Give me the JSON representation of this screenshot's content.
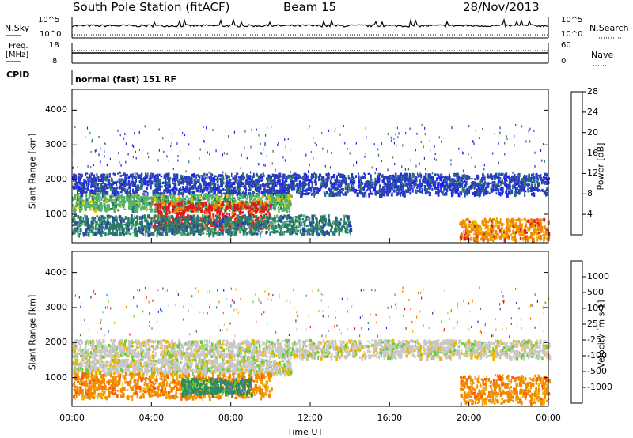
{
  "header": {
    "title": "South Pole Station (fitACF)",
    "beam": "Beam 15",
    "date": "28/Nov/2013"
  },
  "strips": {
    "nsky_label": "N.Sky",
    "nsky_ticks": [
      "10^5",
      "10^0"
    ],
    "nsearch_label": "N.Search",
    "nsearch_ticks": [
      "10^5",
      "10^0"
    ],
    "freq_label_1": "Freq.",
    "freq_label_2": "[MHz]",
    "freq_ticks": [
      "18",
      "8"
    ],
    "nave_label": "Nave",
    "nave_ticks": [
      "60",
      "0"
    ],
    "cpid_label": "CPID",
    "cpid_value": "normal (fast) 151 RF"
  },
  "chart_data": [
    {
      "type": "heatmap",
      "quantity": "Power",
      "ylabel": "Slant Range [km]",
      "yticks": [
        1000,
        2000,
        3000,
        4000
      ],
      "ylim": [
        180,
        4600
      ],
      "xticks": [
        "00:00",
        "04:00",
        "08:00",
        "12:00",
        "16:00",
        "20:00",
        "00:00"
      ],
      "xlim_hours": [
        0,
        24
      ],
      "colorbar": {
        "label": "Power [dB]",
        "ticks": [
          "4",
          "8",
          "12",
          "16",
          "20",
          "24",
          "28"
        ],
        "colors": [
          "#1e1eff",
          "#2a3fb8",
          "#2a7a6a",
          "#52b26a",
          "#e0c800",
          "#f08a00",
          "#e31a1c"
        ]
      },
      "echo_bands": [
        {
          "label": "band-upper",
          "start": "00:00",
          "end": "24:00",
          "range_km": [
            1600,
            2200
          ],
          "power_db": 6
        },
        {
          "label": "band-mid",
          "start": "00:00",
          "end": "11:00",
          "range_km": [
            1150,
            1600
          ],
          "power_db": 14
        },
        {
          "label": "band-low-strong",
          "start": "04:00",
          "end": "10:00",
          "range_km": [
            600,
            1400
          ],
          "power_db": 26
        },
        {
          "label": "band-low",
          "start": "00:00",
          "end": "14:00",
          "range_km": [
            450,
            1000
          ],
          "power_db": 12
        },
        {
          "label": "band-evening",
          "start": "19:30",
          "end": "24:00",
          "range_km": [
            300,
            900
          ],
          "power_db": 22
        }
      ]
    },
    {
      "type": "heatmap",
      "quantity": "Velocity",
      "ylabel": "Slant Range [km]",
      "yticks": [
        1000,
        2000,
        3000,
        4000
      ],
      "ylim": [
        180,
        4600
      ],
      "xticks": [
        "00:00",
        "04:00",
        "08:00",
        "12:00",
        "16:00",
        "20:00",
        "00:00"
      ],
      "xlabel": "Time UT",
      "xlim_hours": [
        0,
        24
      ],
      "colorbar": {
        "label": "Velocity [m s-1]",
        "ticks": [
          "1000",
          "500",
          "100",
          "25",
          "-25",
          "-100",
          "-500",
          "-1000"
        ],
        "colors": [
          "#1e3cc8",
          "#3c78c8",
          "#2e8b57",
          "#66cc33",
          "#c8c8c8",
          "#f0b400",
          "#f08a00",
          "#ff5a00",
          "#e31a1c"
        ]
      },
      "echo_bands": [
        {
          "label": "band-upper",
          "start": "00:00",
          "end": "24:00",
          "range_km": [
            1600,
            2100
          ],
          "velocity": 0
        },
        {
          "label": "band-mid",
          "start": "00:00",
          "end": "11:00",
          "range_km": [
            1150,
            1550
          ],
          "velocity": 0
        },
        {
          "label": "band-low",
          "start": "00:00",
          "end": "10:00",
          "range_km": [
            450,
            1150
          ],
          "velocity": -300
        },
        {
          "label": "band-low-green",
          "start": "05:30",
          "end": "09:00",
          "range_km": [
            550,
            1000
          ],
          "velocity": 150
        },
        {
          "label": "band-evening",
          "start": "19:30",
          "end": "24:00",
          "range_km": [
            300,
            1100
          ],
          "velocity": -400
        }
      ]
    }
  ]
}
